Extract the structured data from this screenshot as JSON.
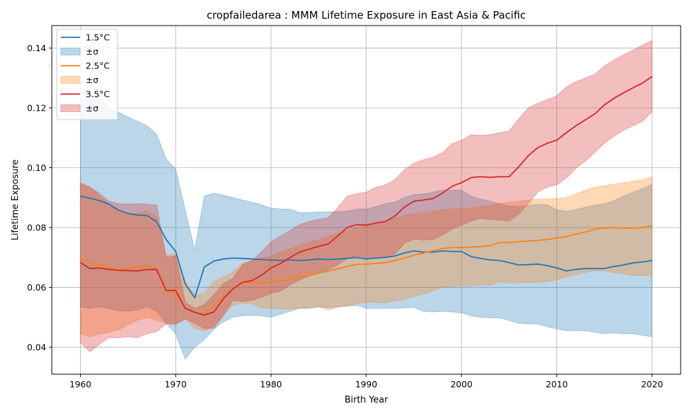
{
  "chart_data": {
    "type": "line",
    "title": "cropfailedarea : MMM Lifetime Exposure in East Asia & Pacific",
    "xlabel": "Birth Year",
    "ylabel": "Lifetime Exposure",
    "xlim": [
      1957,
      2023
    ],
    "ylim": [
      0.031,
      0.1475
    ],
    "xticks": [
      1960,
      1970,
      1980,
      1990,
      2000,
      2010,
      2020
    ],
    "yticks": [
      0.04,
      0.06,
      0.08,
      0.1,
      0.12,
      0.14
    ],
    "grid": true,
    "legend_position": "top-left",
    "x": [
      1960,
      1961,
      1962,
      1963,
      1964,
      1965,
      1966,
      1967,
      1968,
      1969,
      1970,
      1971,
      1972,
      1973,
      1974,
      1975,
      1976,
      1977,
      1978,
      1979,
      1980,
      1981,
      1982,
      1983,
      1984,
      1985,
      1986,
      1987,
      1988,
      1989,
      1990,
      1991,
      1992,
      1993,
      1994,
      1995,
      1996,
      1997,
      1998,
      1999,
      2000,
      2001,
      2002,
      2003,
      2004,
      2005,
      2006,
      2007,
      2008,
      2009,
      2010,
      2011,
      2012,
      2013,
      2014,
      2015,
      2016,
      2017,
      2018,
      2019,
      2020
    ],
    "series": [
      {
        "name": "1.5°C",
        "band_label": "±σ",
        "color": "#1f77b4",
        "values": [
          0.0905,
          0.0898,
          0.089,
          0.0878,
          0.0858,
          0.0847,
          0.0842,
          0.084,
          0.082,
          0.076,
          0.072,
          0.0612,
          0.0565,
          0.0668,
          0.0688,
          0.0695,
          0.0698,
          0.0697,
          0.0695,
          0.0693,
          0.0692,
          0.069,
          0.0692,
          0.069,
          0.0692,
          0.0695,
          0.0693,
          0.0695,
          0.0697,
          0.07,
          0.0695,
          0.0698,
          0.07,
          0.0705,
          0.0715,
          0.0722,
          0.0718,
          0.0718,
          0.0722,
          0.072,
          0.072,
          0.0703,
          0.0697,
          0.0692,
          0.069,
          0.0683,
          0.0675,
          0.0676,
          0.0678,
          0.0673,
          0.0665,
          0.0655,
          0.066,
          0.0663,
          0.0663,
          0.0663,
          0.067,
          0.0675,
          0.0682,
          0.0685,
          0.069
        ],
        "upper": [
          0.127,
          0.125,
          0.123,
          0.12,
          0.1185,
          0.117,
          0.1155,
          0.114,
          0.1112,
          0.103,
          0.0995,
          0.086,
          0.0725,
          0.0905,
          0.0915,
          0.0908,
          0.09,
          0.0892,
          0.0885,
          0.0876,
          0.0865,
          0.0862,
          0.0862,
          0.085,
          0.085,
          0.0852,
          0.0852,
          0.0853,
          0.0855,
          0.0862,
          0.0862,
          0.087,
          0.088,
          0.0885,
          0.09,
          0.091,
          0.0912,
          0.0918,
          0.0925,
          0.0925,
          0.0925,
          0.0905,
          0.0895,
          0.0888,
          0.088,
          0.0872,
          0.087,
          0.0874,
          0.0878,
          0.0876,
          0.086,
          0.0855,
          0.086,
          0.0868,
          0.0875,
          0.088,
          0.089,
          0.0905,
          0.0918,
          0.093,
          0.0945
        ],
        "lower": [
          0.0535,
          0.053,
          0.0535,
          0.053,
          0.0522,
          0.052,
          0.0525,
          0.0535,
          0.052,
          0.048,
          0.0445,
          0.036,
          0.04,
          0.0425,
          0.046,
          0.0485,
          0.05,
          0.0505,
          0.0507,
          0.0505,
          0.05,
          0.051,
          0.052,
          0.053,
          0.053,
          0.0535,
          0.0532,
          0.0535,
          0.0537,
          0.054,
          0.053,
          0.053,
          0.053,
          0.053,
          0.0532,
          0.0533,
          0.052,
          0.0518,
          0.052,
          0.0518,
          0.0515,
          0.0505,
          0.05,
          0.0498,
          0.0498,
          0.049,
          0.048,
          0.0478,
          0.0478,
          0.0468,
          0.0462,
          0.0455,
          0.0455,
          0.0455,
          0.045,
          0.0445,
          0.0448,
          0.0445,
          0.0445,
          0.044,
          0.0435
        ]
      },
      {
        "name": "2.5°C",
        "band_label": "±σ",
        "color": "#ff7f0e",
        "values": [
          0.0695,
          0.0685,
          0.0675,
          0.0665,
          0.0658,
          0.0662,
          0.0668,
          0.0672,
          0.066,
          0.0585,
          0.0582,
          0.053,
          0.0515,
          0.051,
          0.054,
          0.057,
          0.0595,
          0.0615,
          0.0618,
          0.0612,
          0.0618,
          0.0622,
          0.0628,
          0.0635,
          0.064,
          0.0648,
          0.0655,
          0.0662,
          0.067,
          0.0677,
          0.0678,
          0.068,
          0.0683,
          0.069,
          0.0698,
          0.0708,
          0.0715,
          0.0722,
          0.073,
          0.0733,
          0.0733,
          0.0735,
          0.0736,
          0.074,
          0.075,
          0.075,
          0.0753,
          0.0755,
          0.0757,
          0.076,
          0.0765,
          0.077,
          0.0778,
          0.0785,
          0.0795,
          0.0798,
          0.08,
          0.0798,
          0.0798,
          0.08,
          0.0805
        ],
        "upper": [
          0.095,
          0.0935,
          0.0905,
          0.088,
          0.086,
          0.0845,
          0.0848,
          0.0855,
          0.0835,
          0.071,
          0.071,
          0.062,
          0.0575,
          0.058,
          0.062,
          0.0635,
          0.065,
          0.068,
          0.069,
          0.07,
          0.0705,
          0.0718,
          0.073,
          0.074,
          0.0752,
          0.076,
          0.077,
          0.078,
          0.079,
          0.08,
          0.0805,
          0.0815,
          0.0822,
          0.083,
          0.084,
          0.0845,
          0.085,
          0.0855,
          0.086,
          0.0862,
          0.0865,
          0.0865,
          0.087,
          0.0875,
          0.088,
          0.0885,
          0.0888,
          0.0892,
          0.0895,
          0.0896,
          0.0897,
          0.09,
          0.0912,
          0.0925,
          0.0935,
          0.094,
          0.0945,
          0.095,
          0.0955,
          0.096,
          0.097
        ],
        "lower": [
          0.0445,
          0.0435,
          0.0445,
          0.045,
          0.0458,
          0.0475,
          0.049,
          0.05,
          0.049,
          0.048,
          0.0478,
          0.0495,
          0.0462,
          0.0455,
          0.047,
          0.051,
          0.054,
          0.0548,
          0.0545,
          0.0532,
          0.053,
          0.0528,
          0.0528,
          0.053,
          0.0532,
          0.0535,
          0.0525,
          0.0533,
          0.054,
          0.0545,
          0.055,
          0.055,
          0.0548,
          0.0555,
          0.056,
          0.057,
          0.0578,
          0.0588,
          0.06,
          0.0602,
          0.0605,
          0.0605,
          0.0608,
          0.0608,
          0.0618,
          0.0615,
          0.0615,
          0.0617,
          0.0615,
          0.062,
          0.0625,
          0.0635,
          0.0642,
          0.065,
          0.0655,
          0.0655,
          0.065,
          0.0645,
          0.064,
          0.064,
          0.064
        ]
      },
      {
        "name": "3.5°C",
        "band_label": "±σ",
        "color": "#d62728",
        "values": [
          0.0683,
          0.0663,
          0.0665,
          0.066,
          0.0657,
          0.0656,
          0.0655,
          0.066,
          0.066,
          0.059,
          0.059,
          0.053,
          0.0517,
          0.0507,
          0.0518,
          0.0562,
          0.0595,
          0.0617,
          0.0623,
          0.064,
          0.0665,
          0.068,
          0.07,
          0.0718,
          0.0728,
          0.0737,
          0.0745,
          0.0772,
          0.08,
          0.081,
          0.0808,
          0.0815,
          0.082,
          0.0838,
          0.0868,
          0.0888,
          0.0892,
          0.0897,
          0.0915,
          0.0938,
          0.095,
          0.0967,
          0.097,
          0.0968,
          0.097,
          0.097,
          0.1003,
          0.104,
          0.1067,
          0.1082,
          0.1092,
          0.1117,
          0.114,
          0.116,
          0.118,
          0.121,
          0.1232,
          0.125,
          0.1267,
          0.1283,
          0.1305
        ],
        "upper": [
          0.0948,
          0.0935,
          0.0915,
          0.0888,
          0.088,
          0.0878,
          0.088,
          0.0878,
          0.0875,
          0.07,
          0.0705,
          0.055,
          0.053,
          0.0542,
          0.0575,
          0.0612,
          0.063,
          0.0675,
          0.069,
          0.0718,
          0.0752,
          0.0772,
          0.079,
          0.081,
          0.082,
          0.0827,
          0.0832,
          0.0867,
          0.0905,
          0.0913,
          0.0918,
          0.0935,
          0.0942,
          0.096,
          0.0993,
          0.1015,
          0.1027,
          0.1035,
          0.105,
          0.108,
          0.1092,
          0.111,
          0.1108,
          0.111,
          0.1117,
          0.1123,
          0.1163,
          0.12,
          0.1215,
          0.1228,
          0.124,
          0.127,
          0.1287,
          0.13,
          0.1312,
          0.134,
          0.136,
          0.1377,
          0.1393,
          0.141,
          0.1425
        ],
        "lower": [
          0.0415,
          0.0385,
          0.041,
          0.0432,
          0.0432,
          0.0435,
          0.0432,
          0.0445,
          0.0452,
          0.0478,
          0.0477,
          0.0495,
          0.048,
          0.0463,
          0.0463,
          0.0505,
          0.0557,
          0.0553,
          0.0557,
          0.0567,
          0.058,
          0.0588,
          0.0608,
          0.0625,
          0.0638,
          0.065,
          0.066,
          0.0675,
          0.0697,
          0.0705,
          0.07,
          0.0697,
          0.07,
          0.0712,
          0.0747,
          0.0762,
          0.0758,
          0.076,
          0.0775,
          0.0795,
          0.0808,
          0.0822,
          0.083,
          0.0827,
          0.0825,
          0.0822,
          0.0845,
          0.088,
          0.0918,
          0.0935,
          0.0943,
          0.0965,
          0.0998,
          0.1022,
          0.1052,
          0.1082,
          0.1105,
          0.1125,
          0.114,
          0.1155,
          0.1187
        ]
      }
    ]
  }
}
